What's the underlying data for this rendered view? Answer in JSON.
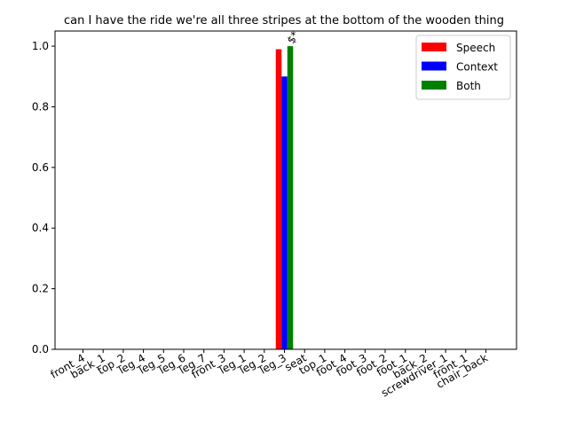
{
  "chart_data": {
    "type": "bar",
    "title": "can I have the ride we're all three stripes at the bottom of the wooden thing",
    "xlabel": "",
    "ylabel": "",
    "ylim": [
      0,
      1.05
    ],
    "yticks": [
      "0.0",
      "0.2",
      "0.4",
      "0.6",
      "0.8",
      "1.0"
    ],
    "categories": [
      "front_4",
      "back_1",
      "top_2",
      "leg_4",
      "leg_5",
      "leg_6",
      "leg_7",
      "front_3",
      "leg_1",
      "leg_2",
      "leg_3",
      "seat",
      "top_1",
      "foot_4",
      "foot_3",
      "foot_2",
      "foot_1",
      "back_2",
      "screwdriver_1",
      "front_1",
      "chair_back"
    ],
    "series": [
      {
        "name": "Speech",
        "color": "#ff0000",
        "values": [
          0,
          0,
          0,
          0,
          0,
          0,
          0,
          0,
          0,
          0,
          0.99,
          0,
          0,
          0,
          0,
          0,
          0,
          0,
          0,
          0,
          0
        ]
      },
      {
        "name": "Context",
        "color": "#0000ff",
        "values": [
          0,
          0,
          0,
          0,
          0,
          0,
          0,
          0,
          0,
          0,
          0.9,
          0,
          0,
          0,
          0,
          0,
          0,
          0,
          0,
          0,
          0
        ]
      },
      {
        "name": "Both",
        "color": "#008000",
        "values": [
          0,
          0,
          0,
          0,
          0,
          0,
          0,
          0,
          0,
          0,
          1.0,
          0,
          0,
          0,
          0,
          0,
          0,
          0,
          0,
          0,
          0
        ]
      }
    ],
    "annotations": [
      {
        "category": "leg_3",
        "text": "$*"
      }
    ],
    "legend": "top-right",
    "grid": false
  }
}
